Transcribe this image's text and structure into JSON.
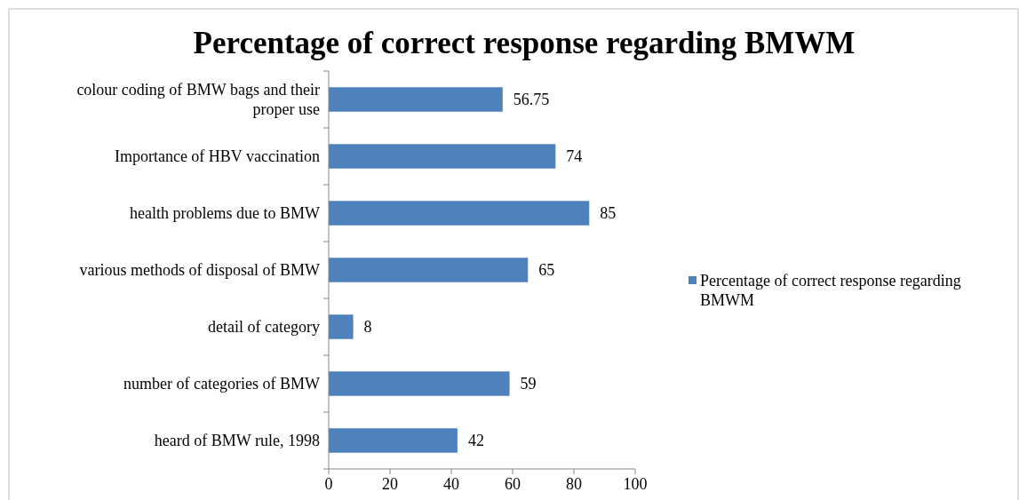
{
  "chart_data": {
    "type": "bar",
    "orientation": "horizontal",
    "title": "Percentage of correct response regarding BMWM",
    "categories": [
      "colour coding of BMW bags and their proper use",
      "Importance of HBV vaccination",
      "health problems due to BMW",
      "various methods of disposal of BMW",
      "detail of category",
      "number of categories of BMW",
      "heard of BMW rule, 1998"
    ],
    "series": [
      {
        "name": "Percentage of correct response regarding BMWM",
        "color": "#4f81bd",
        "values": [
          56.75,
          74,
          85,
          65,
          8,
          59,
          42
        ]
      }
    ],
    "xlim": [
      0,
      100
    ],
    "xticks": [
      0,
      20,
      40,
      60,
      80,
      100
    ],
    "data_labels": true,
    "legend": "right",
    "grid": false
  }
}
